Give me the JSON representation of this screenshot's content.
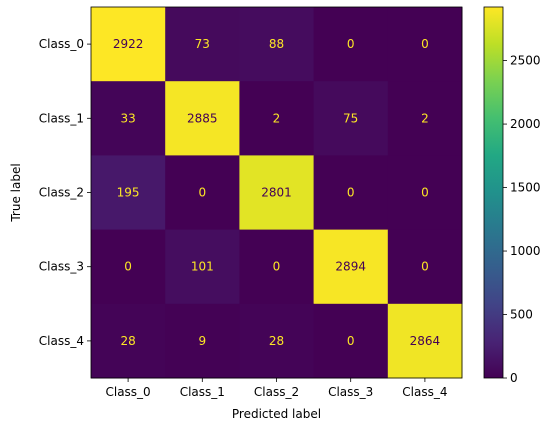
{
  "chart_data": {
    "type": "heatmap",
    "title": "",
    "xlabel": "Predicted label",
    "ylabel": "True label",
    "x_categories": [
      "Class_0",
      "Class_1",
      "Class_2",
      "Class_3",
      "Class_4"
    ],
    "y_categories": [
      "Class_0",
      "Class_1",
      "Class_2",
      "Class_3",
      "Class_4"
    ],
    "matrix": [
      [
        2922,
        73,
        88,
        0,
        0
      ],
      [
        33,
        2885,
        2,
        75,
        2
      ],
      [
        195,
        0,
        2801,
        0,
        0
      ],
      [
        0,
        101,
        0,
        2894,
        0
      ],
      [
        28,
        9,
        28,
        0,
        2864
      ]
    ],
    "value_range": [
      0,
      2922
    ],
    "colormap": "viridis",
    "text_color_low": "#fde725",
    "text_color_high": "#440154",
    "colorbar": {
      "ticks": [
        0,
        500,
        1000,
        1500,
        2000,
        2500
      ],
      "tick_labels": [
        "0",
        "500",
        "1000",
        "1500",
        "2000",
        "2500"
      ],
      "placement": "right"
    },
    "grid": false
  }
}
